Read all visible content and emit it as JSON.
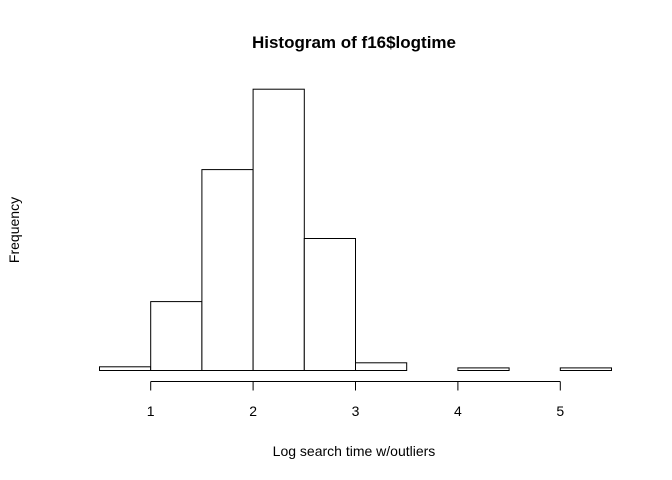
{
  "chart_data": {
    "type": "bar",
    "title": "Histogram of f16$logtime",
    "xlabel": "Log search time w/outliers",
    "ylabel": "Frequency",
    "xlim": [
      0.5,
      5.5
    ],
    "x_ticks": [
      1,
      2,
      3,
      4,
      5
    ],
    "bins": [
      {
        "start": 0.5,
        "end": 1.0,
        "value": 1.3
      },
      {
        "start": 1.0,
        "end": 1.5,
        "value": 24
      },
      {
        "start": 1.5,
        "end": 2.0,
        "value": 70
      },
      {
        "start": 2.0,
        "end": 2.5,
        "value": 98
      },
      {
        "start": 2.5,
        "end": 3.0,
        "value": 46
      },
      {
        "start": 3.0,
        "end": 3.5,
        "value": 2.7
      },
      {
        "start": 3.5,
        "end": 4.0,
        "value": 0
      },
      {
        "start": 4.0,
        "end": 4.5,
        "value": 0.9
      },
      {
        "start": 4.5,
        "end": 5.0,
        "value": 0
      },
      {
        "start": 5.0,
        "end": 5.5,
        "value": 0.9
      }
    ],
    "grid": false,
    "show_y_axis": false
  }
}
